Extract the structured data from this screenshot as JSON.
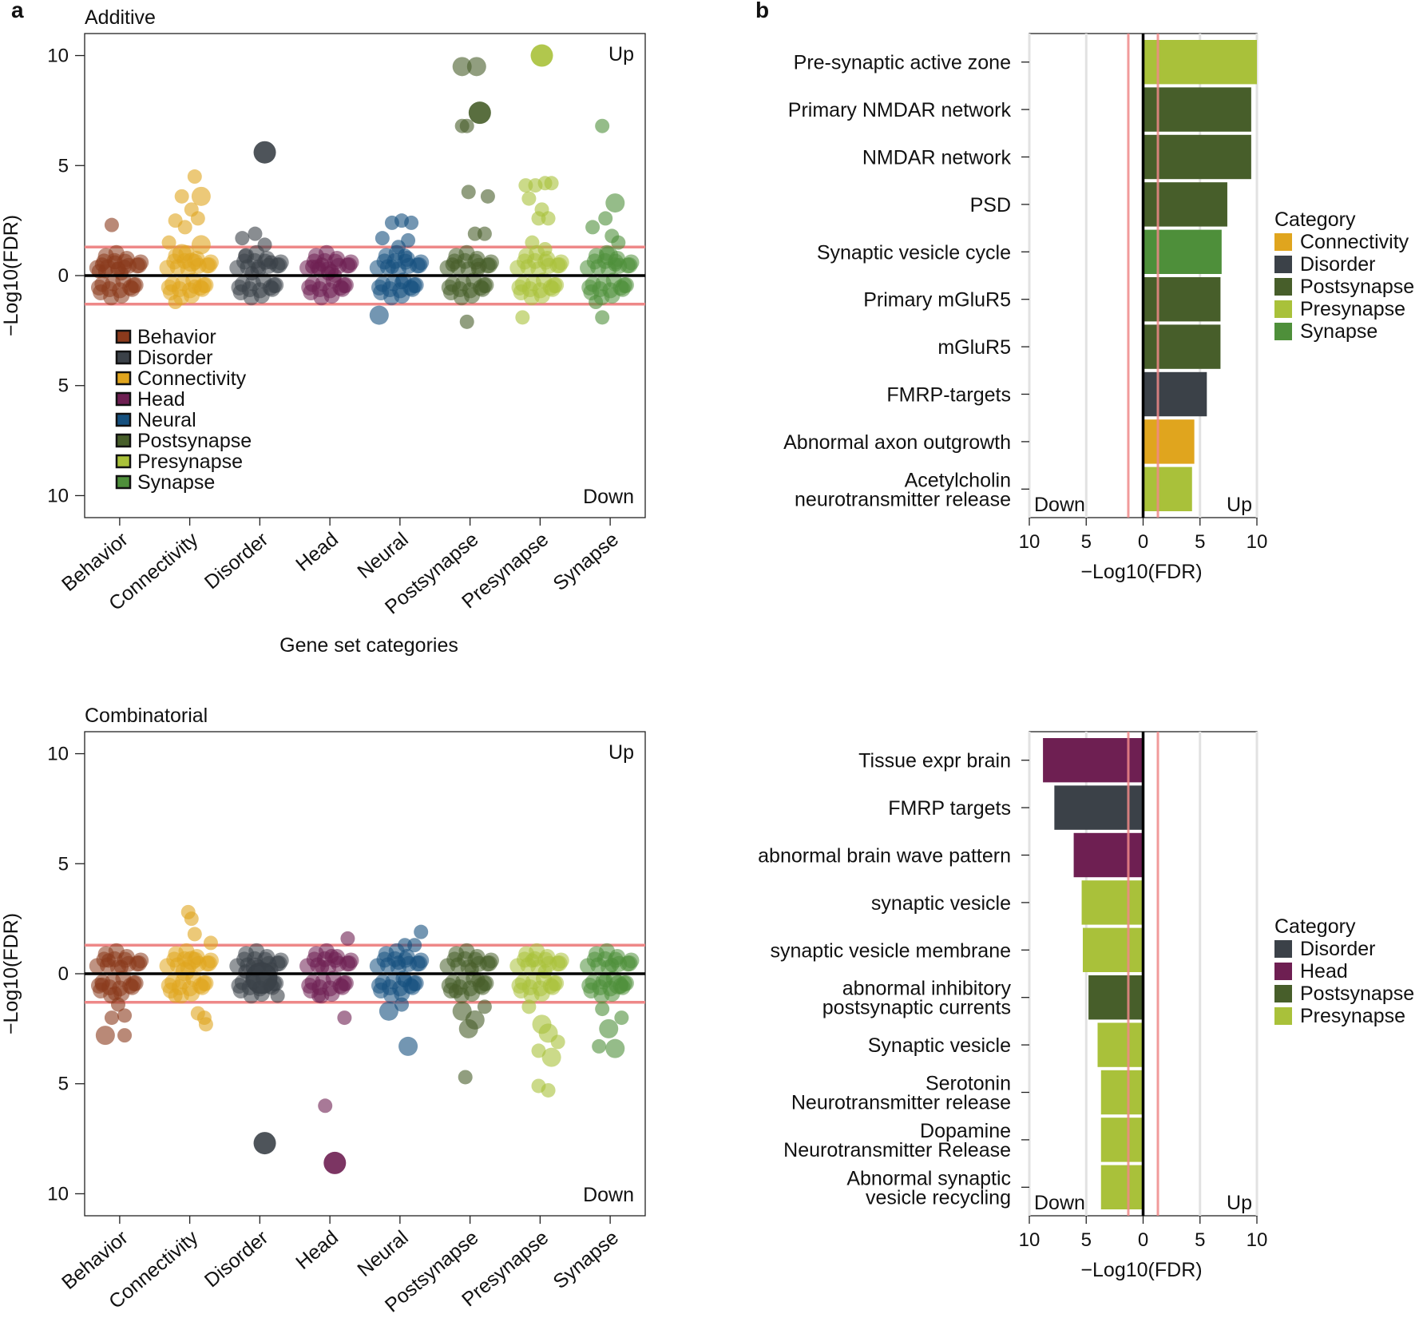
{
  "panel_letters": [
    "a",
    "b"
  ],
  "colors": {
    "Behavior": "#8b3a1c",
    "Disorder": "#3b4148",
    "Connectivity": "#e0a51e",
    "Head": "#6e1f52",
    "Neural": "#15507f",
    "Postsynapse": "#475e2a",
    "Presynapse": "#a9c13a",
    "Synapse": "#4e8f3a",
    "threshold": "#ee8888"
  },
  "chart_data": [
    {
      "id": "additive_scatter",
      "type": "scatter",
      "title": "Additive",
      "xlabel": "Gene set categories",
      "ylabel": "−Log10(FDR)",
      "ylim": [
        -11,
        11
      ],
      "yticks": [
        10,
        5,
        0,
        -5,
        -10
      ],
      "ytick_labels": [
        "10",
        "5",
        "0",
        "5",
        "10"
      ],
      "threshold": 1.3,
      "corner_up": "Up",
      "corner_down": "Down",
      "categories": [
        "Behavior",
        "Connectivity",
        "Disorder",
        "Head",
        "Neural",
        "Postsynapse",
        "Presynapse",
        "Synapse"
      ],
      "legend_title": "",
      "legend": [
        "Behavior",
        "Disorder",
        "Connectivity",
        "Head",
        "Neural",
        "Postsynapse",
        "Presynapse",
        "Synapse"
      ],
      "points": {
        "Behavior": [
          [
            0.0,
            2.3,
            1
          ],
          [
            -0.3,
            0.5,
            1
          ],
          [
            0.2,
            0.3,
            1
          ],
          [
            0.4,
            0.4,
            1
          ],
          [
            -0.2,
            0.2,
            1
          ],
          [
            0.1,
            0.6,
            1
          ],
          [
            0.3,
            0.1,
            1
          ],
          [
            -0.4,
            0.2,
            1
          ]
        ],
        "Connectivity": [
          [
            0.4,
            4.5,
            1
          ],
          [
            0.6,
            3.6,
            2
          ],
          [
            0.0,
            3.6,
            1
          ],
          [
            0.3,
            3.0,
            1
          ],
          [
            0.5,
            2.6,
            1
          ],
          [
            -0.2,
            2.5,
            1
          ],
          [
            0.1,
            2.2,
            1
          ],
          [
            -0.4,
            1.5,
            1
          ],
          [
            0.6,
            1.4,
            2
          ],
          [
            -0.2,
            -1.2,
            1
          ],
          [
            0.4,
            -0.5,
            1
          ],
          [
            0.0,
            1.0,
            2
          ],
          [
            0.3,
            0.6,
            2
          ]
        ],
        "Disorder": [
          [
            0.4,
            5.6,
            3
          ],
          [
            -0.3,
            1.7,
            1
          ],
          [
            0.1,
            1.9,
            1
          ],
          [
            0.4,
            1.4,
            1
          ],
          [
            0.6,
            0.6,
            1
          ],
          [
            -0.2,
            0.9,
            1
          ],
          [
            0.2,
            0.4,
            1
          ],
          [
            0.0,
            0.1,
            1
          ]
        ],
        "Head": [
          [
            0.0,
            0.5,
            1
          ],
          [
            0.3,
            0.2,
            1
          ],
          [
            -0.3,
            0.4,
            1
          ],
          [
            0.4,
            0.0,
            1
          ],
          [
            -0.1,
            0.3,
            1
          ],
          [
            0.2,
            0.1,
            1
          ]
        ],
        "Neural": [
          [
            0.3,
            2.5,
            1
          ],
          [
            0.0,
            2.4,
            1
          ],
          [
            0.6,
            2.4,
            1
          ],
          [
            -0.3,
            1.7,
            1
          ],
          [
            0.5,
            1.6,
            1
          ],
          [
            0.2,
            1.3,
            1
          ],
          [
            -0.4,
            -1.8,
            2
          ],
          [
            0.4,
            0.9,
            1
          ],
          [
            0.0,
            0.4,
            1
          ],
          [
            0.3,
            -0.3,
            1
          ]
        ],
        "Postsynapse": [
          [
            0.0,
            9.5,
            2
          ],
          [
            0.45,
            9.5,
            2
          ],
          [
            0.55,
            7.4,
            3
          ],
          [
            0.0,
            6.8,
            1
          ],
          [
            0.15,
            6.8,
            1
          ],
          [
            0.2,
            3.8,
            1
          ],
          [
            0.8,
            3.6,
            1
          ],
          [
            0.4,
            1.9,
            1
          ],
          [
            0.7,
            1.9,
            1
          ],
          [
            0.15,
            -2.1,
            1
          ],
          [
            -0.3,
            0.5,
            1
          ],
          [
            0.5,
            0.3,
            1
          ]
        ],
        "Presynapse": [
          [
            0.3,
            10.0,
            3
          ],
          [
            -0.2,
            4.1,
            1
          ],
          [
            0.1,
            4.1,
            1
          ],
          [
            0.4,
            4.2,
            1
          ],
          [
            0.6,
            4.2,
            1
          ],
          [
            -0.1,
            3.5,
            1
          ],
          [
            0.3,
            3.0,
            1
          ],
          [
            0.2,
            2.6,
            1
          ],
          [
            0.5,
            2.6,
            1
          ],
          [
            -0.3,
            -1.9,
            1
          ],
          [
            0.0,
            1.5,
            1
          ],
          [
            0.4,
            1.2,
            1
          ]
        ],
        "Synapse": [
          [
            0.0,
            6.8,
            1
          ],
          [
            0.4,
            3.3,
            2
          ],
          [
            0.1,
            2.6,
            1
          ],
          [
            -0.3,
            2.2,
            1
          ],
          [
            0.3,
            1.8,
            1
          ],
          [
            0.5,
            1.5,
            1
          ],
          [
            0.0,
            -1.9,
            1
          ],
          [
            -0.2,
            -1.2,
            1
          ],
          [
            0.2,
            0.9,
            2
          ],
          [
            0.4,
            0.5,
            1
          ]
        ]
      }
    },
    {
      "id": "additive_bars",
      "type": "bar",
      "title": "",
      "xlabel": "−Log10(FDR)",
      "xlim": [
        -10,
        10
      ],
      "xticks": [
        -10,
        -5,
        0,
        5,
        10
      ],
      "xtick_labels": [
        "10",
        "5",
        "0",
        "5",
        "10"
      ],
      "threshold": 1.3,
      "corner_down": "Down",
      "corner_up": "Up",
      "legend_title": "Category",
      "legend": [
        "Connectivity",
        "Disorder",
        "Postsynapse",
        "Presynapse",
        "Synapse"
      ],
      "bars": [
        {
          "label": [
            "Pre-synaptic active zone"
          ],
          "value": 10.0,
          "category": "Presynapse"
        },
        {
          "label": [
            "Primary NMDAR network"
          ],
          "value": 9.5,
          "category": "Postsynapse"
        },
        {
          "label": [
            "NMDAR network"
          ],
          "value": 9.5,
          "category": "Postsynapse"
        },
        {
          "label": [
            "PSD"
          ],
          "value": 7.4,
          "category": "Postsynapse"
        },
        {
          "label": [
            "Synaptic vesicle cycle"
          ],
          "value": 6.9,
          "category": "Synapse"
        },
        {
          "label": [
            "Primary mGluR5"
          ],
          "value": 6.8,
          "category": "Postsynapse"
        },
        {
          "label": [
            "mGluR5"
          ],
          "value": 6.8,
          "category": "Postsynapse"
        },
        {
          "label": [
            "FMRP-targets"
          ],
          "value": 5.6,
          "category": "Disorder"
        },
        {
          "label": [
            "Abnormal axon outgrowth"
          ],
          "value": 4.5,
          "category": "Connectivity"
        },
        {
          "label": [
            "Acetylcholin",
            "neurotransmitter release"
          ],
          "value": 4.3,
          "category": "Presynapse"
        }
      ]
    },
    {
      "id": "combinatorial_scatter",
      "type": "scatter",
      "title": "Combinatorial",
      "xlabel": "",
      "ylabel": "−Log10(FDR)",
      "ylim": [
        -11,
        11
      ],
      "yticks": [
        10,
        5,
        0,
        -5,
        -10
      ],
      "ytick_labels": [
        "10",
        "5",
        "0",
        "5",
        "10"
      ],
      "threshold": 1.3,
      "corner_up": "Up",
      "corner_down": "Down",
      "categories": [
        "Behavior",
        "Connectivity",
        "Disorder",
        "Head",
        "Neural",
        "Postsynapse",
        "Presynapse",
        "Synapse"
      ],
      "legend_title": "",
      "legend": [],
      "points": {
        "Behavior": [
          [
            -0.2,
            -2.8,
            2
          ],
          [
            0.4,
            -2.8,
            1
          ],
          [
            0.0,
            -2.0,
            1
          ],
          [
            0.4,
            -1.9,
            1
          ],
          [
            0.2,
            -1.4,
            1
          ],
          [
            -0.1,
            0.6,
            1
          ],
          [
            0.3,
            0.3,
            1
          ],
          [
            -0.3,
            -0.5,
            1
          ],
          [
            0.1,
            -0.9,
            1
          ]
        ],
        "Connectivity": [
          [
            0.2,
            2.8,
            1
          ],
          [
            0.3,
            2.5,
            1
          ],
          [
            0.4,
            1.8,
            1
          ],
          [
            0.9,
            1.4,
            1
          ],
          [
            -0.2,
            -1.0,
            1
          ],
          [
            0.5,
            -1.8,
            1
          ],
          [
            0.7,
            -2.0,
            1
          ],
          [
            0.75,
            -2.3,
            1
          ],
          [
            0.3,
            0.6,
            2
          ],
          [
            0.1,
            0.1,
            2
          ]
        ],
        "Disorder": [
          [
            0.4,
            -7.7,
            3
          ],
          [
            0.3,
            -0.2,
            4
          ],
          [
            0.1,
            0.3,
            2
          ],
          [
            0.6,
            0.2,
            1
          ],
          [
            0.8,
            -1.0,
            1
          ],
          [
            -0.2,
            0.1,
            1
          ]
        ],
        "Head": [
          [
            0.1,
            -6.0,
            1
          ],
          [
            0.4,
            -8.6,
            3
          ],
          [
            0.8,
            1.6,
            1
          ],
          [
            0.7,
            -2.0,
            1
          ],
          [
            -0.1,
            -1.0,
            1
          ],
          [
            0.3,
            0.8,
            1
          ],
          [
            0.0,
            0.3,
            1
          ]
        ],
        "Neural": [
          [
            0.5,
            -3.3,
            2
          ],
          [
            0.9,
            1.9,
            1
          ],
          [
            0.7,
            1.3,
            1
          ],
          [
            0.4,
            1.3,
            1
          ],
          [
            -0.1,
            -1.7,
            2
          ],
          [
            0.3,
            -1.4,
            1
          ],
          [
            0.2,
            0.5,
            1
          ],
          [
            0.4,
            -0.3,
            1
          ]
        ],
        "Postsynapse": [
          [
            0.1,
            -4.7,
            1
          ],
          [
            -0.2,
            -0.8,
            1
          ],
          [
            0.3,
            0.2,
            1
          ],
          [
            0.5,
            -0.3,
            1
          ],
          [
            0.0,
            -1.7,
            2
          ],
          [
            0.4,
            -2.1,
            2
          ],
          [
            0.7,
            -1.5,
            1
          ],
          [
            0.2,
            -2.5,
            2
          ]
        ],
        "Presynapse": [
          [
            0.2,
            -5.1,
            1
          ],
          [
            0.5,
            -5.3,
            1
          ],
          [
            0.0,
            0.6,
            1
          ],
          [
            0.4,
            0.1,
            1
          ],
          [
            -0.1,
            -1.5,
            1
          ],
          [
            0.3,
            -2.3,
            2
          ],
          [
            0.6,
            -3.8,
            2
          ],
          [
            0.8,
            -3.1,
            1
          ],
          [
            0.2,
            -3.5,
            1
          ],
          [
            0.5,
            -2.7,
            2
          ]
        ],
        "Synapse": [
          [
            -0.1,
            -3.3,
            1
          ],
          [
            0.4,
            -3.4,
            2
          ],
          [
            0.2,
            -2.5,
            2
          ],
          [
            0.6,
            -2.0,
            1
          ],
          [
            0.0,
            -1.6,
            1
          ],
          [
            0.3,
            0.4,
            1
          ],
          [
            0.5,
            -0.5,
            2
          ],
          [
            0.1,
            -0.3,
            1
          ]
        ]
      }
    },
    {
      "id": "combinatorial_bars",
      "type": "bar",
      "title": "",
      "xlabel": "−Log10(FDR)",
      "xlim": [
        -10,
        10
      ],
      "xticks": [
        -10,
        -5,
        0,
        5,
        10
      ],
      "xtick_labels": [
        "10",
        "5",
        "0",
        "5",
        "10"
      ],
      "threshold": 1.3,
      "corner_down": "Down",
      "corner_up": "Up",
      "legend_title": "Category",
      "legend": [
        "Disorder",
        "Head",
        "Postsynapse",
        "Presynapse"
      ],
      "bars": [
        {
          "label": [
            "Tissue expr brain"
          ],
          "value": -8.8,
          "category": "Head"
        },
        {
          "label": [
            "FMRP targets"
          ],
          "value": -7.8,
          "category": "Disorder"
        },
        {
          "label": [
            "abnormal brain wave pattern"
          ],
          "value": -6.1,
          "category": "Head"
        },
        {
          "label": [
            "synaptic vesicle"
          ],
          "value": -5.4,
          "category": "Presynapse"
        },
        {
          "label": [
            "synaptic vesicle membrane"
          ],
          "value": -5.3,
          "category": "Presynapse"
        },
        {
          "label": [
            "abnormal inhibitory",
            "postsynaptic currents"
          ],
          "value": -4.8,
          "category": "Postsynapse"
        },
        {
          "label": [
            "Synaptic vesicle"
          ],
          "value": -4.0,
          "category": "Presynapse"
        },
        {
          "label": [
            "Serotonin",
            "Neurotransmitter release"
          ],
          "value": -3.7,
          "category": "Presynapse"
        },
        {
          "label": [
            "Dopamine",
            "Neurotransmitter Release"
          ],
          "value": -3.7,
          "category": "Presynapse"
        },
        {
          "label": [
            "Abnormal synaptic",
            "vesicle recycling"
          ],
          "value": -3.7,
          "category": "Presynapse"
        }
      ]
    }
  ]
}
